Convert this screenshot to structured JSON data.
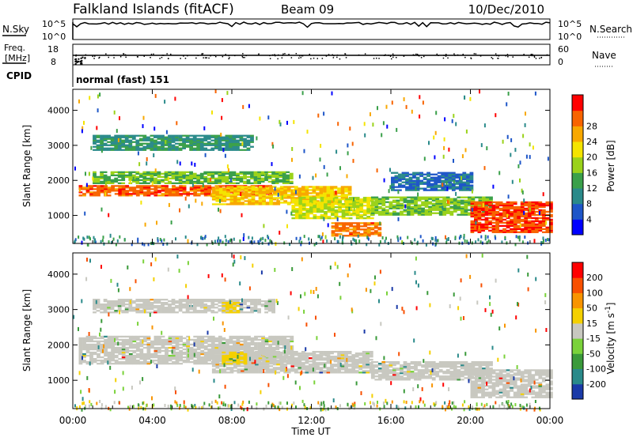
{
  "header": {
    "site": "Falkland Islands (fitACF)",
    "beam": "Beam 09",
    "date": "10/Dec/2010"
  },
  "top_panels": {
    "nsky_label": "N.Sky",
    "nsky_ticks": [
      "10^5",
      "10^0"
    ],
    "nsearch_label": "N.Search",
    "nsearch_ticks": [
      "10^5",
      "10^0"
    ],
    "freq_label_1": "Freq.",
    "freq_label_2": "[MHz]",
    "freq_ticks": [
      "18",
      "8"
    ],
    "nave_label": "Nave",
    "nave_ticks": [
      "60",
      "0"
    ],
    "cpid_label": "CPID",
    "cpid_value": "normal (fast) 151"
  },
  "chart_data": [
    {
      "type": "heatmap",
      "name": "power",
      "ylabel": "Slant Range [km]",
      "yticks": [
        1000,
        2000,
        3000,
        4000
      ],
      "ylim": [
        200,
        4600
      ],
      "xlim_hours": [
        0,
        24
      ],
      "colorbar_label": "Power [dB]",
      "colorbar_ticks": [
        4,
        8,
        12,
        16,
        20,
        24,
        28
      ],
      "colorbar_colors": [
        "#0000ff",
        "#1e56c8",
        "#2a8a8a",
        "#3aa04a",
        "#9ad21a",
        "#f4e400",
        "#f8a800",
        "#f86400",
        "#ff0000"
      ],
      "colorbar_range": [
        0,
        32
      ],
      "bands": [
        {
          "t0": 0.3,
          "t1": 10.0,
          "r0": 1550,
          "r1": 1850,
          "v": 27
        },
        {
          "t0": 1.0,
          "t1": 11.0,
          "r0": 1900,
          "r1": 2250,
          "v": 14
        },
        {
          "t0": 1.0,
          "t1": 9.0,
          "r0": 2850,
          "r1": 3300,
          "v": 10
        },
        {
          "t0": 7.0,
          "t1": 14.0,
          "r0": 1300,
          "r1": 1800,
          "v": 22
        },
        {
          "t0": 11.0,
          "t1": 15.0,
          "r0": 900,
          "r1": 1500,
          "v": 18
        },
        {
          "t0": 15.0,
          "t1": 21.0,
          "r0": 1000,
          "r1": 1500,
          "v": 15
        },
        {
          "t0": 16.0,
          "t1": 20.0,
          "r0": 1700,
          "r1": 2200,
          "v": 7
        },
        {
          "t0": 20.0,
          "t1": 24.0,
          "r0": 500,
          "r1": 1400,
          "v": 28
        },
        {
          "t0": 13.0,
          "t1": 15.5,
          "r0": 400,
          "r1": 800,
          "v": 26
        }
      ]
    },
    {
      "type": "heatmap",
      "name": "velocity",
      "ylabel": "Slant Range [km]",
      "yticks": [
        1000,
        2000,
        3000,
        4000
      ],
      "ylim": [
        200,
        4600
      ],
      "xlim_hours": [
        0,
        24
      ],
      "xticks": [
        "00:00",
        "04:00",
        "08:00",
        "12:00",
        "16:00",
        "20:00",
        "00:00"
      ],
      "xlabel": "Time UT",
      "colorbar_label": "Velocity [m s^-1]",
      "colorbar_ticks": [
        200,
        100,
        50,
        15,
        -15,
        -50,
        -100,
        -200
      ],
      "colorbar_colors": [
        "#1a3aa8",
        "#2a8a8a",
        "#3a9a3a",
        "#7ad23a",
        "#c8c8c0",
        "#f4d000",
        "#f89400",
        "#f85000",
        "#ff0000"
      ],
      "colorbar_range": [
        -250,
        250
      ],
      "bands": [
        {
          "t0": 0.3,
          "t1": 11.0,
          "r0": 1450,
          "r1": 2250,
          "v": 0
        },
        {
          "t0": 1.0,
          "t1": 10.0,
          "r0": 2900,
          "r1": 3300,
          "v": 0
        },
        {
          "t0": 7.0,
          "t1": 15.0,
          "r0": 1200,
          "r1": 1800,
          "v": 0
        },
        {
          "t0": 15.0,
          "t1": 21.0,
          "r0": 1000,
          "r1": 1500,
          "v": 0
        },
        {
          "t0": 20.0,
          "t1": 24.0,
          "r0": 500,
          "r1": 1300,
          "v": 0
        },
        {
          "t0": 7.5,
          "t1": 8.6,
          "r0": 1450,
          "r1": 1800,
          "v": 30
        },
        {
          "t0": 7.5,
          "t1": 8.3,
          "r0": 2900,
          "r1": 3200,
          "v": 30
        }
      ]
    }
  ]
}
